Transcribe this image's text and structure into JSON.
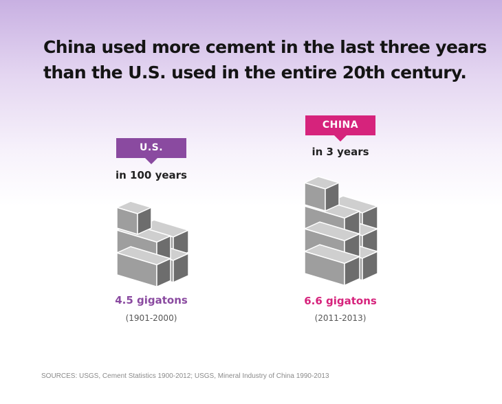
{
  "title_lines": [
    "China used more cement in the last three years",
    "than the U.S. used in the entire 20th century."
  ],
  "colors": {
    "us": "#8a4aa0",
    "china": "#d6237c",
    "block_top": "#cfcfcf",
    "block_front": "#9e9e9e",
    "block_side": "#6d6d6d"
  },
  "chart_data": {
    "type": "pictograph",
    "unit": "gigatons",
    "items": [
      {
        "tag": "U.S.",
        "period": "in 100 years",
        "value": 4.5,
        "value_label": "4.5 gigatons",
        "years": "(1901-2000)"
      },
      {
        "tag": "CHINA",
        "period": "in 3 years",
        "value": 6.6,
        "value_label": "6.6 gigatons",
        "years": "(2011-2013)"
      }
    ]
  },
  "source": "SOURCES: USGS, Cement Statistics 1900-2012; USGS, Mineral Industry of China 1990-2013"
}
